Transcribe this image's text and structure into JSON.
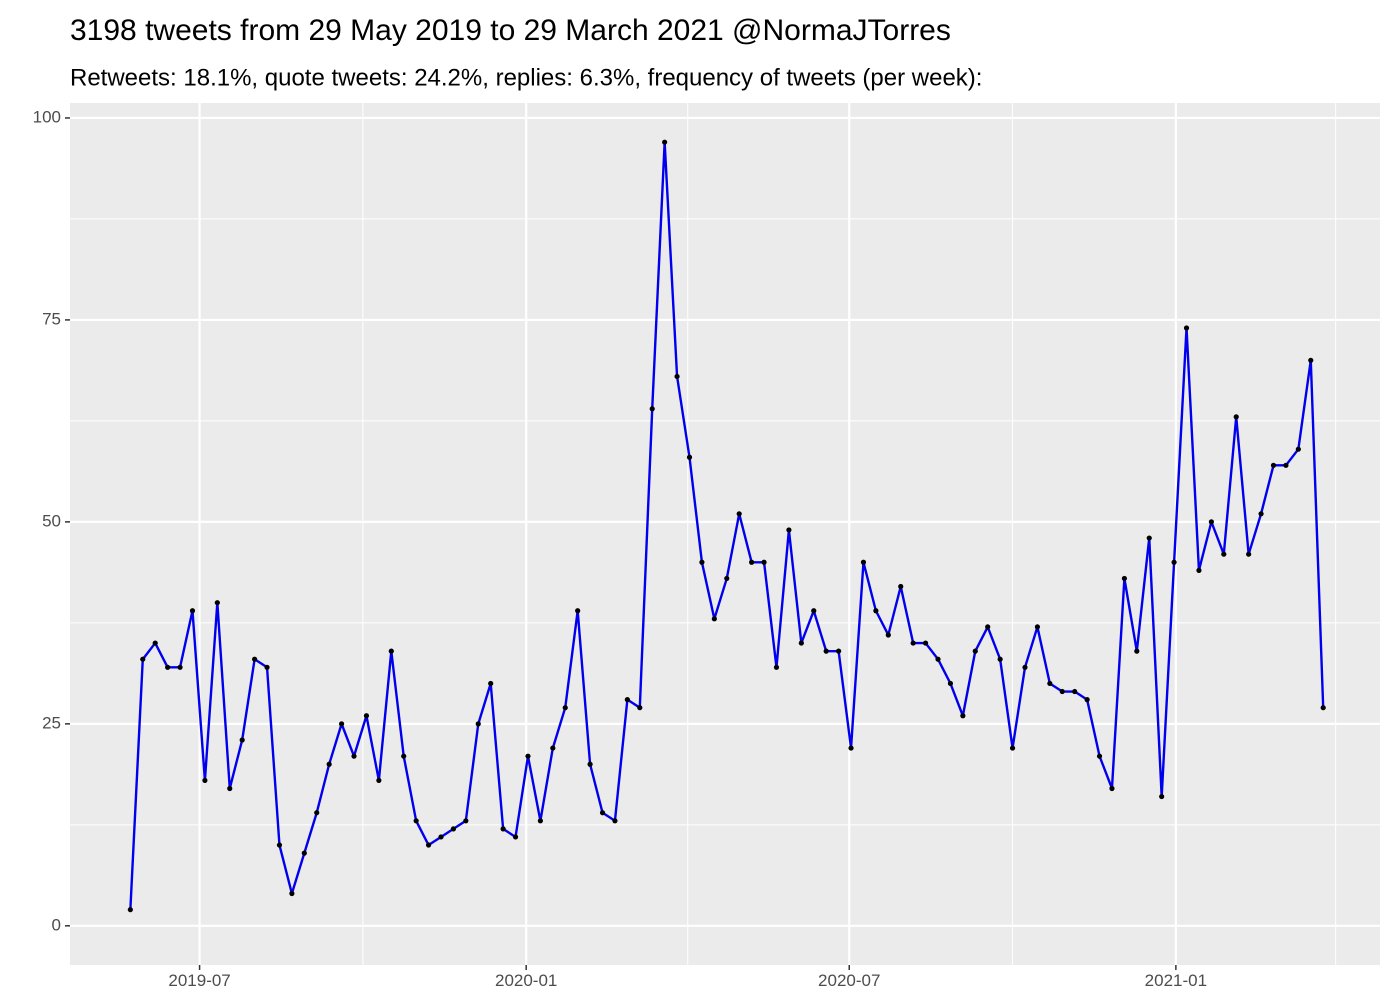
{
  "chart_data": {
    "type": "line",
    "title": "3198 tweets from 29 May 2019 to 29 March 2021 @NormaJTorres",
    "subtitle": "Retweets: 18.1%, quote tweets: 24.2%, replies: 6.3%, frequency of tweets (per week):",
    "x": [
      "2019-05-23",
      "2019-05-30",
      "2019-06-06",
      "2019-06-13",
      "2019-06-20",
      "2019-06-27",
      "2019-07-04",
      "2019-07-11",
      "2019-07-18",
      "2019-07-25",
      "2019-08-01",
      "2019-08-08",
      "2019-08-15",
      "2019-08-22",
      "2019-08-29",
      "2019-09-05",
      "2019-09-12",
      "2019-09-19",
      "2019-09-26",
      "2019-10-03",
      "2019-10-10",
      "2019-10-17",
      "2019-10-24",
      "2019-10-31",
      "2019-11-07",
      "2019-11-14",
      "2019-11-21",
      "2019-11-28",
      "2019-12-05",
      "2019-12-12",
      "2019-12-19",
      "2019-12-26",
      "2020-01-02",
      "2020-01-09",
      "2020-01-16",
      "2020-01-23",
      "2020-01-30",
      "2020-02-06",
      "2020-02-13",
      "2020-02-20",
      "2020-02-27",
      "2020-03-05",
      "2020-03-12",
      "2020-03-19",
      "2020-03-26",
      "2020-04-02",
      "2020-04-09",
      "2020-04-16",
      "2020-04-23",
      "2020-04-30",
      "2020-05-07",
      "2020-05-14",
      "2020-05-21",
      "2020-05-28",
      "2020-06-04",
      "2020-06-11",
      "2020-06-18",
      "2020-06-25",
      "2020-07-02",
      "2020-07-09",
      "2020-07-16",
      "2020-07-23",
      "2020-07-30",
      "2020-08-06",
      "2020-08-13",
      "2020-08-20",
      "2020-08-27",
      "2020-09-03",
      "2020-09-10",
      "2020-09-17",
      "2020-09-24",
      "2020-10-01",
      "2020-10-08",
      "2020-10-15",
      "2020-10-22",
      "2020-10-29",
      "2020-11-05",
      "2020-11-12",
      "2020-11-19",
      "2020-11-26",
      "2020-12-03",
      "2020-12-10",
      "2020-12-17",
      "2020-12-24",
      "2020-12-31",
      "2021-01-07",
      "2021-01-14",
      "2021-01-21",
      "2021-01-28",
      "2021-02-04",
      "2021-02-11",
      "2021-02-18",
      "2021-02-25",
      "2021-03-04",
      "2021-03-11",
      "2021-03-18",
      "2021-03-25"
    ],
    "values": [
      2,
      33,
      35,
      32,
      32,
      39,
      18,
      40,
      17,
      23,
      33,
      32,
      10,
      4,
      9,
      14,
      20,
      25,
      21,
      26,
      18,
      34,
      21,
      13,
      10,
      11,
      12,
      13,
      25,
      30,
      12,
      11,
      21,
      13,
      22,
      27,
      39,
      20,
      14,
      13,
      28,
      27,
      64,
      97,
      68,
      58,
      45,
      38,
      43,
      51,
      45,
      45,
      32,
      49,
      35,
      39,
      34,
      34,
      22,
      45,
      39,
      36,
      42,
      35,
      35,
      33,
      30,
      26,
      34,
      37,
      33,
      22,
      32,
      37,
      30,
      29,
      29,
      28,
      21,
      17,
      43,
      34,
      48,
      16,
      45,
      74,
      44,
      50,
      46,
      63,
      46,
      51,
      57,
      57,
      59,
      70,
      27
    ],
    "color": "#0000ee",
    "point_color": "#000000",
    "xlim": [
      "2019-04-19",
      "2021-04-26"
    ],
    "xticks": [
      {
        "value": "2019-07-01",
        "label": "2019-07"
      },
      {
        "value": "2020-01-01",
        "label": "2020-01"
      },
      {
        "value": "2020-07-01",
        "label": "2020-07"
      },
      {
        "value": "2021-01-01",
        "label": "2021-01"
      }
    ],
    "xminorticks": [
      "2019-10-01",
      "2020-04-01",
      "2020-10-01",
      "2021-04-01"
    ],
    "ylim": [
      -4.85,
      101.85
    ],
    "yticks": [
      0,
      25,
      50,
      75,
      100
    ],
    "yminorticks": [
      12.5,
      37.5,
      62.5,
      87.5
    ],
    "grid": true
  }
}
